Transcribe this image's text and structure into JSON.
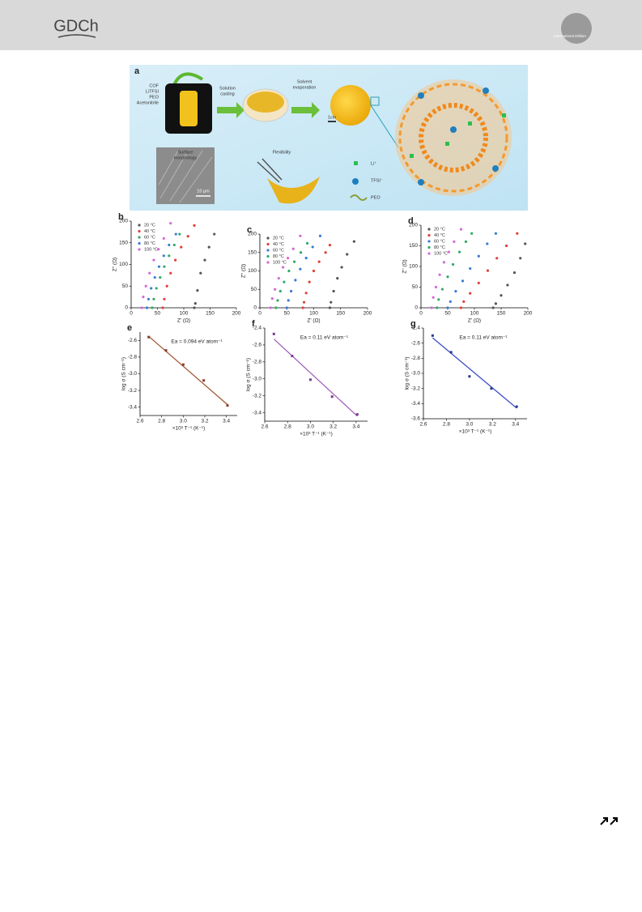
{
  "header": {
    "logo": "GDCh",
    "edition": "International Edition"
  },
  "panel_a": {
    "panel": "a",
    "mixture": [
      "COF",
      "LiTFSI",
      "PEO",
      "Acetonitrile"
    ],
    "step1": [
      "Solution",
      "casting"
    ],
    "step2": [
      "Solvent",
      "evaporation"
    ],
    "scale": "1cm",
    "sem": [
      "Surface",
      "morphology"
    ],
    "sem_scale": "10 µm",
    "flex": "Flexibility",
    "legend": [
      "Li⁺",
      "TFSI⁻",
      "PEO"
    ]
  },
  "chart_data": [
    {
      "type": "scatter",
      "panel": "b",
      "xlabel": "Z' (Ω)",
      "ylabel": "Z'' (Ω)",
      "xlim": [
        0,
        200
      ],
      "ylim": [
        0,
        200
      ],
      "xticks": [
        0,
        50,
        100,
        150,
        200
      ],
      "yticks": [
        0,
        50,
        100,
        150,
        200
      ],
      "series": [
        {
          "name": "20 °C",
          "color": "#555555",
          "x": [
            120,
            122,
            126,
            132,
            140,
            148,
            158
          ],
          "values": [
            0,
            10,
            40,
            80,
            110,
            140,
            170
          ]
        },
        {
          "name": "40 °C",
          "color": "#e0403a",
          "x": [
            60,
            63,
            68,
            75,
            84,
            95,
            108,
            120
          ],
          "values": [
            0,
            20,
            50,
            80,
            110,
            140,
            165,
            190
          ]
        },
        {
          "name": "60 °C",
          "color": "#2fa96b",
          "x": [
            40,
            43,
            48,
            55,
            63,
            72,
            82,
            92
          ],
          "values": [
            0,
            20,
            45,
            70,
            95,
            120,
            145,
            170
          ]
        },
        {
          "name": "80 °C",
          "color": "#3a7bd5",
          "x": [
            30,
            33,
            38,
            45,
            53,
            62,
            72,
            85
          ],
          "values": [
            0,
            20,
            45,
            70,
            95,
            120,
            145,
            170
          ]
        },
        {
          "name": "100 °C",
          "color": "#d36ad6",
          "x": [
            20,
            23,
            28,
            35,
            43,
            52,
            62,
            75
          ],
          "values": [
            0,
            25,
            50,
            80,
            110,
            135,
            160,
            195
          ]
        }
      ]
    },
    {
      "type": "scatter",
      "panel": "c",
      "xlabel": "Z' (Ω)",
      "ylabel": "Z'' (Ω)",
      "xlim": [
        0,
        200
      ],
      "ylim": [
        0,
        200
      ],
      "xticks": [
        0,
        50,
        100,
        150,
        200
      ],
      "yticks": [
        0,
        50,
        100,
        150,
        200
      ],
      "series": [
        {
          "name": "20 °C",
          "color": "#555555",
          "x": [
            130,
            132,
            137,
            144,
            152,
            162,
            175
          ],
          "values": [
            0,
            15,
            45,
            80,
            110,
            145,
            180
          ]
        },
        {
          "name": "40 °C",
          "color": "#e0403a",
          "x": [
            80,
            82,
            86,
            92,
            100,
            110,
            122,
            130
          ],
          "values": [
            0,
            15,
            40,
            70,
            100,
            125,
            150,
            170
          ]
        },
        {
          "name": "60 °C",
          "color": "#3a7bd5",
          "x": [
            50,
            53,
            58,
            66,
            75,
            86,
            98,
            112
          ],
          "values": [
            0,
            20,
            45,
            75,
            105,
            135,
            165,
            195
          ]
        },
        {
          "name": "80 °C",
          "color": "#2fa96b",
          "x": [
            30,
            33,
            38,
            45,
            54,
            64,
            76,
            88
          ],
          "values": [
            0,
            20,
            45,
            70,
            100,
            125,
            150,
            175
          ]
        },
        {
          "name": "100 °C",
          "color": "#d36ad6",
          "x": [
            20,
            23,
            28,
            35,
            43,
            52,
            62,
            75
          ],
          "values": [
            0,
            25,
            50,
            80,
            110,
            135,
            160,
            195
          ]
        }
      ]
    },
    {
      "type": "scatter",
      "panel": "d",
      "xlabel": "Z' (Ω)",
      "ylabel": "Z'' (Ω)",
      "xlim": [
        0,
        200
      ],
      "ylim": [
        0,
        200
      ],
      "xticks": [
        0,
        50,
        100,
        150,
        200
      ],
      "yticks": [
        0,
        50,
        100,
        150,
        200
      ],
      "series": [
        {
          "name": "20 °C",
          "color": "#555555",
          "x": [
            135,
            140,
            150,
            162,
            175,
            186,
            195
          ],
          "values": [
            0,
            10,
            30,
            55,
            85,
            120,
            155
          ]
        },
        {
          "name": "40 °C",
          "color": "#e0403a",
          "x": [
            75,
            80,
            92,
            108,
            125,
            142,
            160,
            180
          ],
          "values": [
            0,
            15,
            35,
            60,
            90,
            120,
            150,
            180
          ]
        },
        {
          "name": "60 °C",
          "color": "#3a7bd5",
          "x": [
            50,
            55,
            65,
            78,
            92,
            108,
            124,
            140
          ],
          "values": [
            0,
            15,
            40,
            65,
            95,
            125,
            155,
            180
          ]
        },
        {
          "name": "80 °C",
          "color": "#2fa96b",
          "x": [
            30,
            33,
            40,
            50,
            60,
            72,
            84,
            95
          ],
          "values": [
            0,
            20,
            45,
            75,
            105,
            135,
            160,
            180
          ]
        },
        {
          "name": "100 °C",
          "color": "#d36ad6",
          "x": [
            20,
            23,
            28,
            35,
            43,
            52,
            62,
            75
          ],
          "values": [
            0,
            25,
            50,
            80,
            110,
            135,
            160,
            190
          ]
        }
      ]
    },
    {
      "type": "arrhenius",
      "panel": "e",
      "xlabel": "×10³ T⁻¹ (K⁻¹)",
      "ylabel": "log σ (S cm⁻¹)",
      "annotation": "Ea = 0.094 eV atom⁻¹",
      "xlim": [
        2.6,
        3.5
      ],
      "ylim": [
        -3.5,
        -2.5
      ],
      "xticks": [
        2.6,
        2.8,
        {
          "value": 3,
          "label": "3.0"
        },
        3.2,
        3.4
      ],
      "yticks": [
        -2.6,
        -2.8,
        {
          "value": -3,
          "label": "-3.0"
        },
        -3.2,
        -3.4
      ],
      "series": [
        {
          "color": "#8b3a2a",
          "x": [
            2.68,
            2.84,
            3.0,
            3.19,
            3.41
          ],
          "values": [
            -2.56,
            -2.72,
            -2.89,
            -3.08,
            -3.38
          ]
        }
      ],
      "fit": {
        "color": "#a0522d",
        "x": [
          2.68,
          3.41
        ],
        "values": [
          -2.55,
          -3.37
        ]
      }
    },
    {
      "type": "arrhenius",
      "panel": "f",
      "xlabel": "×10³ T⁻¹ (K⁻¹)",
      "ylabel": "log σ (S cm⁻¹)",
      "annotation": "Ea = 0.11 eV atom⁻¹",
      "xlim": [
        2.6,
        3.5
      ],
      "ylim": [
        -3.5,
        -2.4
      ],
      "xticks": [
        2.6,
        2.8,
        {
          "value": 3,
          "label": "3.0"
        },
        3.2,
        3.4
      ],
      "yticks": [
        -2.4,
        -2.6,
        -2.8,
        {
          "value": -3,
          "label": "-3.0"
        },
        -3.2,
        -3.4
      ],
      "series": [
        {
          "color": "#7a3a8a",
          "x": [
            2.68,
            2.84,
            3.0,
            3.19,
            3.41
          ],
          "values": [
            -2.47,
            -2.73,
            -3.01,
            -3.21,
            -3.42
          ]
        }
      ],
      "fit": {
        "color": "#9b59b6",
        "x": [
          2.68,
          3.41
        ],
        "values": [
          -2.53,
          -3.44
        ]
      }
    },
    {
      "type": "arrhenius",
      "panel": "g",
      "xlabel": "×10³ T⁻¹ (K⁻¹)",
      "ylabel": "log σ (S cm⁻¹)",
      "annotation": "Ea = 0.11 eV atom⁻¹",
      "xlim": [
        2.6,
        3.5
      ],
      "ylim": [
        -3.6,
        -2.4
      ],
      "xticks": [
        2.6,
        2.8,
        {
          "value": 3,
          "label": "3.0"
        },
        3.2,
        3.4
      ],
      "yticks": [
        -2.4,
        -2.6,
        -2.8,
        {
          "value": -3,
          "label": "-3.0"
        },
        -3.2,
        -3.4,
        -3.6
      ],
      "series": [
        {
          "color": "#2a3a8a",
          "x": [
            2.68,
            2.84,
            3.0,
            3.19,
            3.41
          ],
          "values": [
            -2.5,
            -2.72,
            -3.04,
            -3.2,
            -3.44
          ]
        }
      ],
      "fit": {
        "color": "#3548c8",
        "x": [
          2.68,
          3.41
        ],
        "values": [
          -2.53,
          -3.46
        ]
      }
    }
  ]
}
